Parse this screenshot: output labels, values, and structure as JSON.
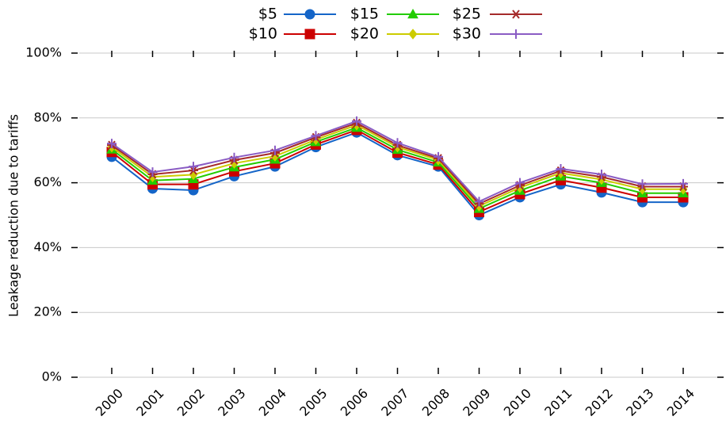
{
  "chart_data": {
    "type": "line",
    "ylabel": "Leakage reduction due to tariffs",
    "categories": [
      "2000",
      "2001",
      "2002",
      "2003",
      "2004",
      "2005",
      "2006",
      "2007",
      "2008",
      "2009",
      "2010",
      "2011",
      "2012",
      "2013",
      "2014"
    ],
    "ylim": [
      0,
      100
    ],
    "yticks": [
      {
        "value": 0,
        "label": "0%"
      },
      {
        "value": 20,
        "label": "20%"
      },
      {
        "value": 40,
        "label": "40%"
      },
      {
        "value": 60,
        "label": "60%"
      },
      {
        "value": 80,
        "label": "80%"
      },
      {
        "value": 100,
        "label": "100%"
      }
    ],
    "grid": true,
    "series": [
      {
        "name": "$5",
        "color": "#1565c8",
        "marker": "circle",
        "values": [
          68,
          58.2,
          57.7,
          62,
          65,
          71,
          75.5,
          68.5,
          65,
          50,
          55.5,
          59.5,
          57,
          54,
          54
        ]
      },
      {
        "name": "$10",
        "color": "#cc0000",
        "marker": "square",
        "values": [
          69.5,
          59.5,
          59.5,
          63.5,
          66,
          71.8,
          76.3,
          69.3,
          65.6,
          51,
          56.5,
          60.8,
          58.5,
          55.5,
          55.5
        ]
      },
      {
        "name": "$15",
        "color": "#22cc00",
        "marker": "triangle",
        "values": [
          70.3,
          60.7,
          61.2,
          64.8,
          67.2,
          72.6,
          77,
          70.2,
          66.3,
          52,
          57.6,
          62,
          60,
          56.8,
          56.8
        ]
      },
      {
        "name": "$20",
        "color": "#cccc00",
        "marker": "diamond",
        "values": [
          71,
          61.8,
          62.5,
          66,
          68.2,
          73.3,
          77.8,
          71,
          67,
          52.8,
          58.5,
          63,
          61,
          58,
          58
        ]
      },
      {
        "name": "$25",
        "color": "#a52a2a",
        "marker": "star",
        "values": [
          71.6,
          62.6,
          63.8,
          67,
          69.2,
          74,
          78.4,
          71.6,
          67.5,
          53.5,
          59.2,
          63.7,
          61.8,
          58.8,
          58.8
        ]
      },
      {
        "name": "$30",
        "color": "#8a5cc4",
        "marker": "plus",
        "values": [
          72.1,
          63.3,
          65,
          67.8,
          70,
          74.5,
          79,
          72.3,
          68,
          54.2,
          60,
          64.3,
          62.6,
          59.6,
          59.7
        ]
      }
    ]
  }
}
